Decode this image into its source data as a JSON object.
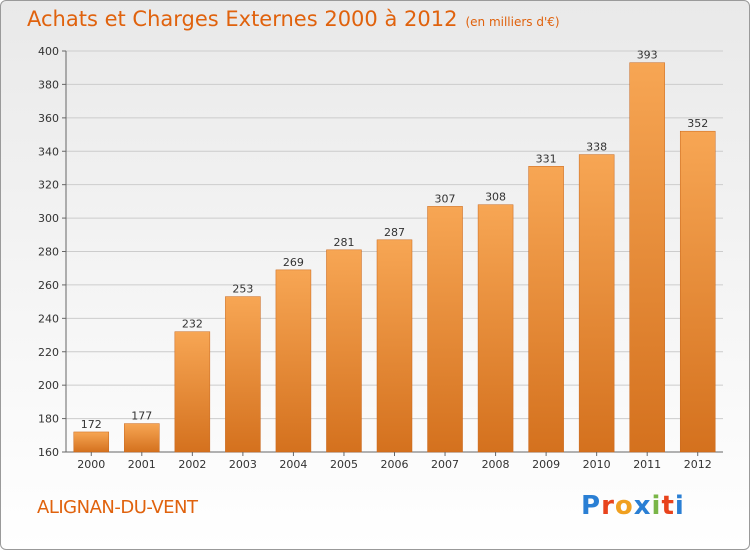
{
  "title": "Achats et Charges Externes 2000 à 2012",
  "subtitle": "(en milliers d'€)",
  "commune": "ALIGNAN-DU-VENT",
  "logo": {
    "letters": [
      "P",
      "r",
      "o",
      "x",
      "i",
      "t",
      "i"
    ],
    "colors": [
      "#2a7fd4",
      "#e8431c",
      "#f0a020",
      "#2a7fd4",
      "#7ab648",
      "#e8431c",
      "#2a7fd4"
    ]
  },
  "colors": {
    "accent": "#e0620d",
    "bar_top": "#f7a654",
    "bar_bottom": "#d4711e",
    "grid": "#cccccc"
  },
  "chart_data": {
    "type": "bar",
    "categories": [
      "2000",
      "2001",
      "2002",
      "2003",
      "2004",
      "2005",
      "2006",
      "2007",
      "2008",
      "2009",
      "2010",
      "2011",
      "2012"
    ],
    "values": [
      172,
      177,
      232,
      253,
      269,
      281,
      287,
      307,
      308,
      331,
      338,
      393,
      352
    ],
    "ylim": [
      160,
      400
    ],
    "yticks": [
      160,
      180,
      200,
      220,
      240,
      260,
      280,
      300,
      320,
      340,
      360,
      380,
      400
    ],
    "grid": true
  }
}
